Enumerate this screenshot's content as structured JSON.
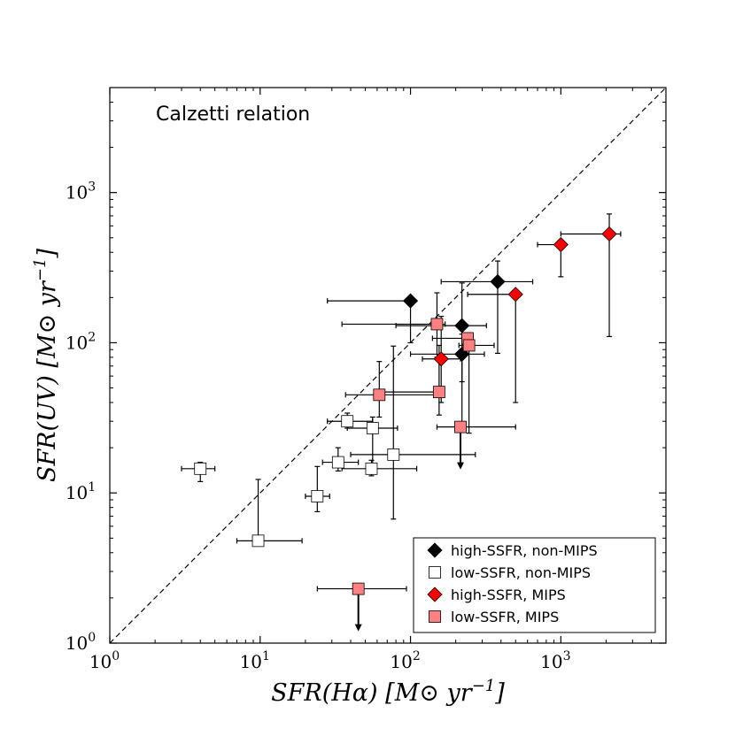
{
  "chart_data": {
    "type": "scatter",
    "title": "",
    "annotation": "Calzetti relation",
    "xlabel": "SFR(Hα) [M⊙ yr⁻¹]",
    "ylabel": "SFR(UV) [M⊙ yr⁻¹]",
    "xscale": "log",
    "yscale": "log",
    "xlim": [
      1,
      5000
    ],
    "ylim": [
      1,
      5000
    ],
    "x_ticks": [
      {
        "value": 1,
        "base": "10",
        "exp": "0"
      },
      {
        "value": 10,
        "base": "10",
        "exp": "1"
      },
      {
        "value": 100,
        "base": "10",
        "exp": "2"
      },
      {
        "value": 1000,
        "base": "10",
        "exp": "3"
      }
    ],
    "y_ticks": [
      {
        "value": 1,
        "base": "10",
        "exp": "0"
      },
      {
        "value": 10,
        "base": "10",
        "exp": "1"
      },
      {
        "value": 100,
        "base": "10",
        "exp": "2"
      },
      {
        "value": 1000,
        "base": "10",
        "exp": "3"
      }
    ],
    "one_to_one_line": {
      "style": "dashed",
      "color": "#000000"
    },
    "legend_position": "lower-right",
    "series": [
      {
        "name": "high-SSFR, non-MIPS",
        "marker": "diamond",
        "color": "#000000",
        "edge": "#000000",
        "points": [
          {
            "x": 100,
            "y": 190,
            "xerr": [
              72,
              0
            ],
            "yerr": [
              90,
              0
            ],
            "upper_limit": false
          },
          {
            "x": 380,
            "y": 255,
            "xerr": [
              220,
              270
            ],
            "yerr": [
              170,
              95
            ],
            "upper_limit": false
          },
          {
            "x": 220,
            "y": 130,
            "xerr": [
              140,
              100
            ],
            "yerr": [
              75,
              120
            ],
            "upper_limit": false
          },
          {
            "x": 220,
            "y": 84,
            "xerr": [
              120,
              90
            ],
            "yerr": [
              56,
              30
            ],
            "upper_limit": false
          }
        ]
      },
      {
        "name": "low-SSFR, non-MIPS",
        "marker": "square",
        "color": "#ffffff",
        "edge": "#000000",
        "points": [
          {
            "x": 4,
            "y": 14.5,
            "xerr": [
              1,
              1
            ],
            "yerr": [
              2.6,
              1.5
            ],
            "upper_limit": false
          },
          {
            "x": 9.7,
            "y": 4.8,
            "xerr": [
              2.7,
              9.3
            ],
            "yerr": [
              0,
              7.5
            ],
            "upper_limit": false
          },
          {
            "x": 24,
            "y": 9.5,
            "xerr": [
              4,
              5
            ],
            "yerr": [
              2,
              5.5
            ],
            "upper_limit": false
          },
          {
            "x": 33,
            "y": 16,
            "xerr": [
              7,
              12
            ],
            "yerr": [
              2,
              4
            ],
            "upper_limit": false
          },
          {
            "x": 38,
            "y": 30,
            "xerr": [
              10,
              18
            ],
            "yerr": [
              3,
              4
            ],
            "upper_limit": false
          },
          {
            "x": 56,
            "y": 27,
            "xerr": [
              18,
              26
            ],
            "yerr": [
              12,
              5
            ],
            "upper_limit": false
          },
          {
            "x": 55,
            "y": 14.5,
            "xerr": [
              20,
              55
            ],
            "yerr": [
              1.5,
              2
            ],
            "upper_limit": false
          },
          {
            "x": 77,
            "y": 18,
            "xerr": [
              37,
              193
            ],
            "yerr": [
              11.3,
              77
            ],
            "upper_limit": false
          }
        ]
      },
      {
        "name": "high-SSFR, MIPS",
        "marker": "diamond",
        "color": "#ff0000",
        "edge": "#000000",
        "points": [
          {
            "x": 160,
            "y": 78,
            "xerr": [
              40,
              55
            ],
            "yerr": [
              38,
              72
            ],
            "upper_limit": false
          },
          {
            "x": 500,
            "y": 210,
            "xerr": [
              260,
              0
            ],
            "yerr": [
              170,
              0
            ],
            "upper_limit": false
          },
          {
            "x": 1000,
            "y": 450,
            "xerr": [
              300,
              0
            ],
            "yerr": [
              175,
              0
            ],
            "upper_limit": false
          },
          {
            "x": 2100,
            "y": 530,
            "xerr": [
              1100,
              400
            ],
            "yerr": [
              420,
              190
            ],
            "upper_limit": false
          }
        ]
      },
      {
        "name": "low-SSFR, MIPS",
        "marker": "square",
        "color": "#ff8080",
        "edge": "#000000",
        "points": [
          {
            "x": 62,
            "y": 45,
            "xerr": [
              25,
              88
            ],
            "yerr": [
              13,
              30
            ],
            "upper_limit": false
          },
          {
            "x": 150,
            "y": 133,
            "xerr": [
              115,
              20
            ],
            "yerr": [
              53,
              82
            ],
            "upper_limit": false
          },
          {
            "x": 155,
            "y": 47,
            "xerr": [
              95,
              0
            ],
            "yerr": [
              14,
              49
            ],
            "upper_limit": false
          },
          {
            "x": 240,
            "y": 107,
            "xerr": [
              100,
              20
            ],
            "yerr": [
              7,
              0
            ],
            "upper_limit": false
          },
          {
            "x": 245,
            "y": 96,
            "xerr": [
              35,
              115
            ],
            "yerr": [
              71,
              0
            ],
            "upper_limit": false
          },
          {
            "x": 215,
            "y": 27.5,
            "xerr": [
              65,
              285
            ],
            "yerr": [
              0,
              0
            ],
            "upper_limit": true
          },
          {
            "x": 45,
            "y": 2.3,
            "xerr": [
              21,
              49
            ],
            "yerr": [
              0,
              0
            ],
            "upper_limit": true
          }
        ]
      }
    ]
  }
}
